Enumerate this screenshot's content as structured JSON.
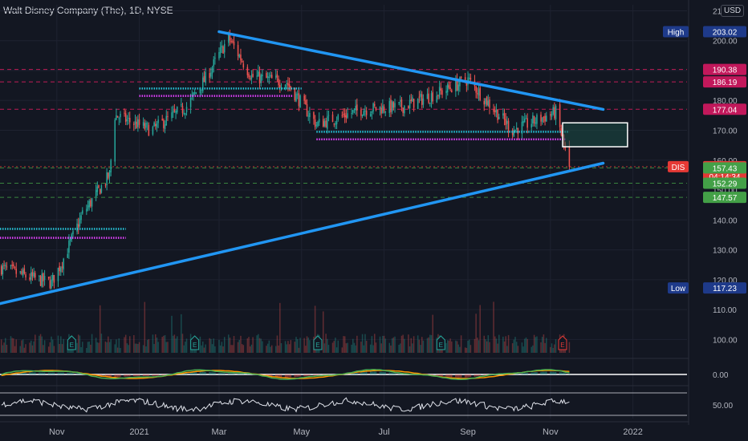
{
  "header": {
    "title": "Walt Disney Company (The), 1D, NYSE",
    "currency": "USD"
  },
  "chart_data": {
    "type": "candlestick",
    "symbol": "DIS",
    "ylim": [
      95,
      212
    ],
    "y_ticks": [
      "100.00",
      "110.00",
      "120.00",
      "130.00",
      "140.00",
      "150.00",
      "160.00",
      "170.00",
      "180.00",
      "190.00",
      "200.00",
      "21"
    ],
    "x_ticks": [
      "Nov",
      "2021",
      "Mar",
      "May",
      "Jul",
      "Sep",
      "Nov",
      "2022"
    ],
    "x_tick_dates": [
      "2020-11-01",
      "2021-01-01",
      "2021-03-01",
      "2021-05-01",
      "2021-07-01",
      "2021-09-01",
      "2021-11-01",
      "2022-01-01"
    ],
    "date_range": [
      "2020-09-20",
      "2022-02-10"
    ],
    "last_bar_date": "2021-11-15",
    "price_path": [
      {
        "date": "2020-09-21",
        "value": 124
      },
      {
        "date": "2020-10-10",
        "value": 121
      },
      {
        "date": "2020-10-28",
        "value": 119
      },
      {
        "date": "2020-11-05",
        "value": 126
      },
      {
        "date": "2020-11-20",
        "value": 142
      },
      {
        "date": "2020-12-10",
        "value": 155
      },
      {
        "date": "2020-12-14",
        "value": 175
      },
      {
        "date": "2021-01-10",
        "value": 170
      },
      {
        "date": "2021-02-05",
        "value": 178
      },
      {
        "date": "2021-02-20",
        "value": 188
      },
      {
        "date": "2021-03-08",
        "value": 201
      },
      {
        "date": "2021-03-25",
        "value": 188
      },
      {
        "date": "2021-04-20",
        "value": 186
      },
      {
        "date": "2021-05-12",
        "value": 172
      },
      {
        "date": "2021-06-15",
        "value": 177
      },
      {
        "date": "2021-07-15",
        "value": 178
      },
      {
        "date": "2021-08-13",
        "value": 183
      },
      {
        "date": "2021-09-01",
        "value": 187
      },
      {
        "date": "2021-10-04",
        "value": 170
      },
      {
        "date": "2021-10-25",
        "value": 174
      },
      {
        "date": "2021-11-05",
        "value": 176
      },
      {
        "date": "2021-11-15",
        "value": 157.82
      }
    ],
    "price_labels": [
      {
        "name": "High",
        "value": 203.02,
        "text": "203.02",
        "color": "#1e3a8a"
      },
      {
        "name": "",
        "value": 190.38,
        "text": "190.38",
        "color": "#c2185b"
      },
      {
        "name": "",
        "value": 186.19,
        "text": "186.19",
        "color": "#c2185b"
      },
      {
        "name": "",
        "value": 177.04,
        "text": "177.04",
        "color": "#c2185b"
      },
      {
        "name": "DIS",
        "value": 157.82,
        "text": "157.82",
        "color": "#e53935"
      },
      {
        "name": "",
        "value": 154.6,
        "text": "04:14:34",
        "color": "#e53935"
      },
      {
        "name": "",
        "value": 157.43,
        "text": "157.43",
        "color": "#43a047"
      },
      {
        "name": "",
        "value": 152.29,
        "text": "152.29",
        "color": "#43a047"
      },
      {
        "name": "",
        "value": 147.57,
        "text": "147.57",
        "color": "#43a047"
      },
      {
        "name": "Low",
        "value": 117.23,
        "text": "117.23",
        "color": "#1e3a8a"
      }
    ],
    "horizontal_lines": [
      {
        "value": 190.38,
        "color": "#e91e63",
        "style": "dashed"
      },
      {
        "value": 186.19,
        "color": "#e91e63",
        "style": "dashed"
      },
      {
        "value": 177.04,
        "color": "#e91e63",
        "style": "dashed"
      },
      {
        "value": 157.82,
        "color": "#e53935",
        "style": "dotted"
      },
      {
        "value": 157.43,
        "color": "#43a047",
        "style": "dashed"
      },
      {
        "value": 152.29,
        "color": "#43a047",
        "style": "dashed"
      },
      {
        "value": 147.57,
        "color": "#43a047",
        "style": "dashed"
      }
    ],
    "trendlines": [
      {
        "name": "upper-trendline",
        "from": {
          "date": "2021-03-01",
          "value": 203
        },
        "to": {
          "date": "2021-12-10",
          "value": 177
        }
      },
      {
        "name": "lower-trendline",
        "from": {
          "date": "2020-09-20",
          "value": 112
        },
        "to": {
          "date": "2021-12-10",
          "value": 159
        }
      }
    ],
    "support_resistance": [
      {
        "from": "2020-09-20",
        "to": "2020-12-22",
        "value": 137,
        "color": "#26c6da"
      },
      {
        "from": "2020-09-20",
        "to": "2020-12-22",
        "value": 134,
        "color": "#e040fb"
      },
      {
        "from": "2021-01-01",
        "to": "2021-05-01",
        "value": 184,
        "color": "#26c6da"
      },
      {
        "from": "2021-01-01",
        "to": "2021-04-25",
        "value": 181.5,
        "color": "#e040fb"
      },
      {
        "from": "2021-05-12",
        "to": "2021-11-15",
        "value": 169.5,
        "color": "#26c6da"
      },
      {
        "from": "2021-05-12",
        "to": "2021-11-12",
        "value": 167,
        "color": "#e040fb"
      }
    ],
    "rectangle": {
      "from": "2021-11-10",
      "to": "2021-12-28",
      "top": 172.5,
      "bottom": 164.5
    },
    "earnings_dates": [
      "2020-11-12",
      "2021-02-11",
      "2021-05-13",
      "2021-08-12",
      "2021-11-10"
    ],
    "earnings_label": "E",
    "indicator_levels": [
      {
        "panel": "macd",
        "text": "0.00"
      },
      {
        "panel": "rsi",
        "text": "50.00"
      }
    ],
    "colors": {
      "up": "#26a69a",
      "down": "#ef5350",
      "background": "#131722",
      "trend": "#2196f3"
    }
  }
}
